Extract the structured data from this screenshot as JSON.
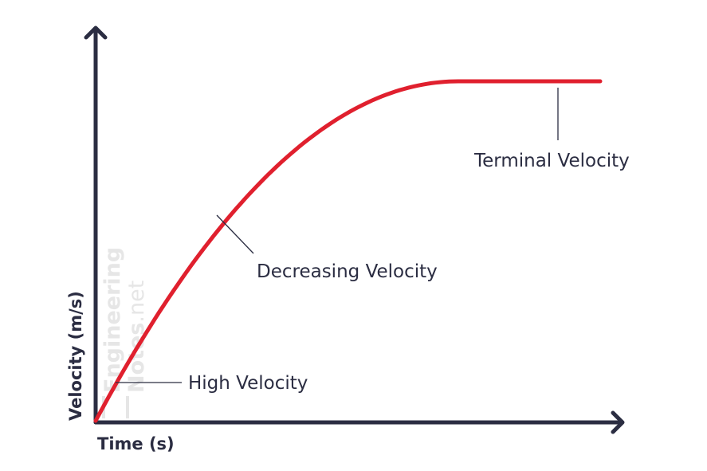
{
  "chart_data": {
    "type": "line",
    "title": "",
    "xlabel": "Time (s)",
    "ylabel": "Velocity (m/s)",
    "grid": false,
    "legend": "none",
    "series": [
      {
        "color": "#e0202e",
        "shape": "rises steeply, then levels off at terminal velocity"
      }
    ],
    "annotations": [
      {
        "text": "High Velocity"
      },
      {
        "text": "Decreasing Velocity"
      },
      {
        "text": "Terminal Velocity"
      }
    ]
  },
  "watermark": {
    "line1": "Engineering",
    "line2": "Notes",
    "suffix": ".net"
  },
  "colors": {
    "axis": "#2b2d42",
    "curve": "#e0202e",
    "text": "#2b2d42",
    "watermark": "#e6e6e6"
  }
}
